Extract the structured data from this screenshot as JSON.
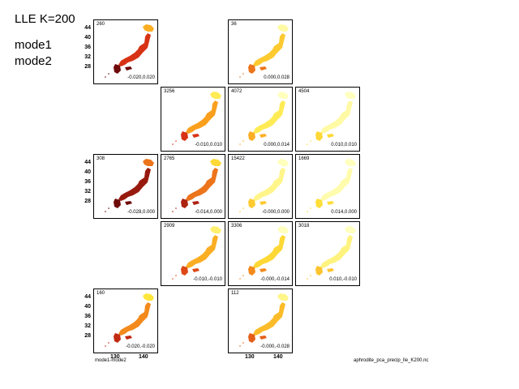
{
  "header": {
    "title": "LLE K=200",
    "line1": "mode1",
    "line2": "mode2"
  },
  "chart_data": {
    "type": "map-grid",
    "title": "LLE K=200",
    "xlabel": "mode1-mode2",
    "x_ticks": [
      "130",
      "140"
    ],
    "y_ticks": [
      "44",
      "40",
      "36",
      "32",
      "28"
    ],
    "source": "aphrodite_pca_precip_lle_K200.nc",
    "panels": [
      {
        "row": 0,
        "col": 0,
        "count": "260",
        "range": "-0.020,0.020",
        "intensity": 0.75
      },
      {
        "row": 0,
        "col": 2,
        "count": "36",
        "range": "0.000,0.028",
        "intensity": 0.35
      },
      {
        "row": 1,
        "col": 1,
        "count": "3256",
        "range": "-0.010,0.010",
        "intensity": 0.5
      },
      {
        "row": 1,
        "col": 2,
        "count": "4072",
        "range": "0.000,0.014",
        "intensity": 0.2
      },
      {
        "row": 1,
        "col": 3,
        "count": "4504",
        "range": "0.010,0.010",
        "intensity": 0.05
      },
      {
        "row": 2,
        "col": 0,
        "count": "308",
        "range": "-0.028,0.000",
        "intensity": 0.9
      },
      {
        "row": 2,
        "col": 1,
        "count": "2765",
        "range": "-0.014,0.000",
        "intensity": 0.6
      },
      {
        "row": 2,
        "col": 2,
        "count": "15422",
        "range": "-0.000,0.000",
        "intensity": 0.1
      },
      {
        "row": 2,
        "col": 3,
        "count": "1669",
        "range": "0.014,0.000",
        "intensity": 0.03
      },
      {
        "row": 3,
        "col": 1,
        "count": "2909",
        "range": "-0.010,-0.010",
        "intensity": 0.45
      },
      {
        "row": 3,
        "col": 2,
        "count": "3306",
        "range": "-0.000,-0.014",
        "intensity": 0.3
      },
      {
        "row": 3,
        "col": 3,
        "count": "3018",
        "range": "0.010,-0.010",
        "intensity": 0.12
      },
      {
        "row": 4,
        "col": 0,
        "count": "160",
        "range": "-0.020,-0.020",
        "intensity": 0.55
      },
      {
        "row": 4,
        "col": 2,
        "count": "112",
        "range": "-0.000,-0.028",
        "intensity": 0.4
      }
    ]
  }
}
